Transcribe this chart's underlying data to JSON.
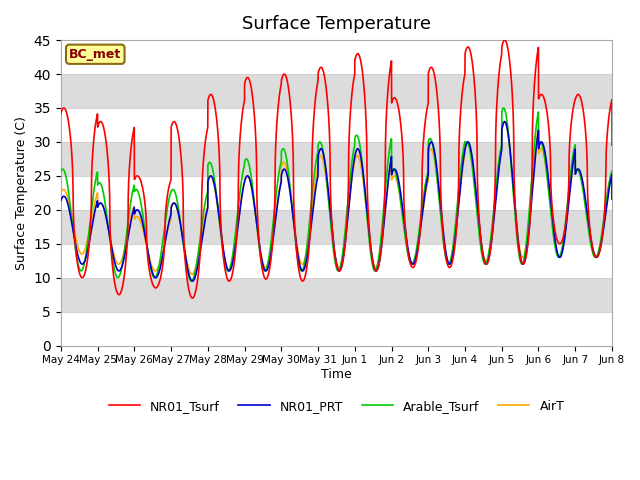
{
  "title": "Surface Temperature",
  "ylabel": "Surface Temperature (C)",
  "xlabel": "Time",
  "ylim": [
    0,
    45
  ],
  "yticks": [
    0,
    5,
    10,
    15,
    20,
    25,
    30,
    35,
    40,
    45
  ],
  "fig_bg": "#ffffff",
  "plot_bg": "#ffffff",
  "band_colors": [
    "#ffffff",
    "#dcdcdc"
  ],
  "annotation": "BC_met",
  "legend": [
    "NR01_Tsurf",
    "NR01_PRT",
    "Arable_Tsurf",
    "AirT"
  ],
  "line_colors": [
    "#ff0000",
    "#0000cc",
    "#00cc00",
    "#ffaa00"
  ],
  "xtick_labels": [
    "May 24",
    "May 25",
    "May 26",
    "May 27",
    "May 28",
    "May 29",
    "May 30",
    "May 31",
    "Jun 1",
    "Jun 2",
    "Jun 3",
    "Jun 4",
    "Jun 5",
    "Jun 6",
    "Jun 7",
    "Jun 8"
  ],
  "n_days": 16,
  "pts_per_day": 288,
  "nr01_peaks": [
    35,
    33,
    25,
    33,
    37,
    39.5,
    40,
    41,
    43,
    36.5,
    41,
    44,
    45,
    37,
    37,
    30
  ],
  "nr01_lows": [
    10,
    7.5,
    8.5,
    7,
    9.5,
    9.8,
    9.5,
    11,
    11,
    11.5,
    11.5,
    12,
    12,
    15,
    13,
    14
  ],
  "prt_peaks": [
    22,
    21,
    20,
    21,
    25,
    25,
    26,
    29,
    29,
    26,
    30,
    30,
    33,
    30,
    26,
    22
  ],
  "prt_lows": [
    12,
    11,
    10,
    9.5,
    11,
    11,
    11,
    11,
    11,
    12,
    12,
    12,
    12,
    13,
    13,
    14
  ],
  "ara_peaks": [
    26,
    24,
    23,
    23,
    27,
    27.5,
    29,
    30,
    31,
    26,
    30.5,
    30,
    35,
    30,
    26,
    26
  ],
  "ara_lows": [
    11,
    10,
    10,
    9.5,
    11,
    11,
    11,
    11,
    11,
    12,
    12,
    12,
    12,
    13,
    13,
    13
  ],
  "air_peaks": [
    23,
    21,
    19,
    21,
    25,
    25,
    27,
    28,
    28,
    25,
    29,
    30,
    33,
    29,
    26,
    22
  ],
  "air_lows": [
    13.5,
    12,
    11,
    10.5,
    11,
    11.5,
    12,
    11.5,
    11.5,
    12,
    12,
    12.5,
    13,
    13,
    13,
    13
  ]
}
